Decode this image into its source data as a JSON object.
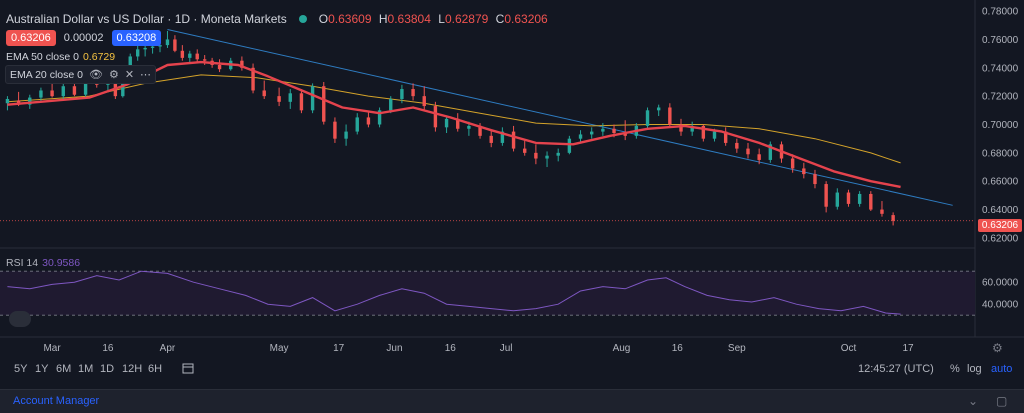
{
  "header": {
    "symbol": "Australian Dollar vs US Dollar · 1D · Moneta Markets",
    "open_k": "O",
    "open": "0.63609",
    "high_k": "H",
    "high": "0.63804",
    "low_k": "L",
    "low": "0.62879",
    "close_k": "C",
    "close": "0.63206"
  },
  "trade": {
    "sell": "0.63206",
    "spread": "0.00002",
    "buy": "0.63208"
  },
  "indicators": {
    "ema50_label": "EMA 50 close 0",
    "ema50_value": "0.6729",
    "ema20_label": "EMA 20 close 0",
    "rsi_label": "RSI 14",
    "rsi_value": "30.9586"
  },
  "current_price_label": "0.63206",
  "toolbar": {
    "timeframes": [
      "5Y",
      "1Y",
      "6M",
      "1M",
      "1D",
      "12H",
      "6H"
    ],
    "clock": "12:45:27 (UTC)",
    "percent": "%",
    "log": "log",
    "auto": "auto"
  },
  "footer": {
    "account_manager": "Account Manager"
  },
  "colors": {
    "up": "#26a69a",
    "down": "#ef5350",
    "ema20": "#e5434d",
    "ema50": "#d4a32a",
    "trend": "#2e7cc1",
    "rsi": "#7e57c2",
    "rsi_bg": "#1f1a30"
  },
  "chart_data": {
    "type": "candlestick",
    "price_axis": {
      "labels": [
        "0.78000",
        "0.76000",
        "0.74000",
        "0.72000",
        "0.70000",
        "0.68000",
        "0.66000",
        "0.64000",
        "0.62000"
      ],
      "range": [
        0.615,
        0.785
      ]
    },
    "rsi_axis": {
      "labels": [
        "60.0000",
        "40.0000"
      ],
      "range": [
        22,
        82
      ],
      "bands": [
        70,
        30
      ]
    },
    "x_labels": [
      "Mar",
      "16",
      "Apr",
      "May",
      "17",
      "Jun",
      "16",
      "Jul",
      "Aug",
      "16",
      "Sep",
      "Oct",
      "17"
    ],
    "x_label_days": [
      0,
      15,
      31,
      61,
      77,
      92,
      107,
      122,
      153,
      168,
      184,
      214,
      230
    ],
    "day_range": [
      -14,
      248
    ],
    "candles": [
      {
        "d": -12,
        "o": 0.715,
        "h": 0.72,
        "l": 0.71,
        "c": 0.718
      },
      {
        "d": -9,
        "o": 0.717,
        "h": 0.723,
        "l": 0.713,
        "c": 0.714
      },
      {
        "d": -6,
        "o": 0.714,
        "h": 0.721,
        "l": 0.711,
        "c": 0.719
      },
      {
        "d": -3,
        "o": 0.719,
        "h": 0.726,
        "l": 0.716,
        "c": 0.724
      },
      {
        "d": 0,
        "o": 0.724,
        "h": 0.729,
        "l": 0.719,
        "c": 0.72
      },
      {
        "d": 3,
        "o": 0.72,
        "h": 0.729,
        "l": 0.718,
        "c": 0.727
      },
      {
        "d": 6,
        "o": 0.727,
        "h": 0.73,
        "l": 0.72,
        "c": 0.721
      },
      {
        "d": 9,
        "o": 0.721,
        "h": 0.733,
        "l": 0.719,
        "c": 0.731
      },
      {
        "d": 12,
        "o": 0.731,
        "h": 0.735,
        "l": 0.726,
        "c": 0.728
      },
      {
        "d": 15,
        "o": 0.728,
        "h": 0.733,
        "l": 0.724,
        "c": 0.731
      },
      {
        "d": 17,
        "o": 0.731,
        "h": 0.732,
        "l": 0.718,
        "c": 0.72
      },
      {
        "d": 19,
        "o": 0.72,
        "h": 0.74,
        "l": 0.719,
        "c": 0.738
      },
      {
        "d": 21,
        "o": 0.738,
        "h": 0.75,
        "l": 0.736,
        "c": 0.748
      },
      {
        "d": 23,
        "o": 0.748,
        "h": 0.756,
        "l": 0.745,
        "c": 0.753
      },
      {
        "d": 25,
        "o": 0.753,
        "h": 0.757,
        "l": 0.748,
        "c": 0.754
      },
      {
        "d": 27,
        "o": 0.754,
        "h": 0.758,
        "l": 0.75,
        "c": 0.755
      },
      {
        "d": 29,
        "o": 0.755,
        "h": 0.761,
        "l": 0.751,
        "c": 0.756
      },
      {
        "d": 31,
        "o": 0.756,
        "h": 0.766,
        "l": 0.754,
        "c": 0.76
      },
      {
        "d": 33,
        "o": 0.76,
        "h": 0.763,
        "l": 0.751,
        "c": 0.752
      },
      {
        "d": 35,
        "o": 0.752,
        "h": 0.756,
        "l": 0.745,
        "c": 0.747
      },
      {
        "d": 37,
        "o": 0.747,
        "h": 0.752,
        "l": 0.744,
        "c": 0.75
      },
      {
        "d": 39,
        "o": 0.75,
        "h": 0.753,
        "l": 0.744,
        "c": 0.746
      },
      {
        "d": 41,
        "o": 0.746,
        "h": 0.749,
        "l": 0.742,
        "c": 0.745
      },
      {
        "d": 43,
        "o": 0.745,
        "h": 0.747,
        "l": 0.74,
        "c": 0.742
      },
      {
        "d": 45,
        "o": 0.742,
        "h": 0.746,
        "l": 0.737,
        "c": 0.739
      },
      {
        "d": 48,
        "o": 0.739,
        "h": 0.747,
        "l": 0.738,
        "c": 0.745
      },
      {
        "d": 51,
        "o": 0.745,
        "h": 0.748,
        "l": 0.738,
        "c": 0.74
      },
      {
        "d": 54,
        "o": 0.74,
        "h": 0.743,
        "l": 0.722,
        "c": 0.724
      },
      {
        "d": 57,
        "o": 0.724,
        "h": 0.731,
        "l": 0.718,
        "c": 0.72
      },
      {
        "d": 61,
        "o": 0.72,
        "h": 0.726,
        "l": 0.713,
        "c": 0.716
      },
      {
        "d": 64,
        "o": 0.716,
        "h": 0.725,
        "l": 0.711,
        "c": 0.722
      },
      {
        "d": 67,
        "o": 0.722,
        "h": 0.725,
        "l": 0.708,
        "c": 0.71
      },
      {
        "d": 70,
        "o": 0.71,
        "h": 0.729,
        "l": 0.708,
        "c": 0.727
      },
      {
        "d": 73,
        "o": 0.727,
        "h": 0.73,
        "l": 0.7,
        "c": 0.702
      },
      {
        "d": 76,
        "o": 0.702,
        "h": 0.705,
        "l": 0.687,
        "c": 0.69
      },
      {
        "d": 79,
        "o": 0.69,
        "h": 0.7,
        "l": 0.685,
        "c": 0.695
      },
      {
        "d": 82,
        "o": 0.695,
        "h": 0.708,
        "l": 0.693,
        "c": 0.705
      },
      {
        "d": 85,
        "o": 0.705,
        "h": 0.709,
        "l": 0.698,
        "c": 0.7
      },
      {
        "d": 88,
        "o": 0.7,
        "h": 0.712,
        "l": 0.698,
        "c": 0.71
      },
      {
        "d": 91,
        "o": 0.71,
        "h": 0.72,
        "l": 0.708,
        "c": 0.718
      },
      {
        "d": 94,
        "o": 0.718,
        "h": 0.728,
        "l": 0.715,
        "c": 0.725
      },
      {
        "d": 97,
        "o": 0.725,
        "h": 0.729,
        "l": 0.717,
        "c": 0.72
      },
      {
        "d": 100,
        "o": 0.72,
        "h": 0.727,
        "l": 0.71,
        "c": 0.713
      },
      {
        "d": 103,
        "o": 0.713,
        "h": 0.716,
        "l": 0.695,
        "c": 0.698
      },
      {
        "d": 106,
        "o": 0.698,
        "h": 0.706,
        "l": 0.694,
        "c": 0.704
      },
      {
        "d": 109,
        "o": 0.704,
        "h": 0.708,
        "l": 0.695,
        "c": 0.697
      },
      {
        "d": 112,
        "o": 0.697,
        "h": 0.702,
        "l": 0.692,
        "c": 0.699
      },
      {
        "d": 115,
        "o": 0.699,
        "h": 0.701,
        "l": 0.69,
        "c": 0.692
      },
      {
        "d": 118,
        "o": 0.692,
        "h": 0.696,
        "l": 0.684,
        "c": 0.687
      },
      {
        "d": 121,
        "o": 0.687,
        "h": 0.698,
        "l": 0.685,
        "c": 0.695
      },
      {
        "d": 124,
        "o": 0.695,
        "h": 0.699,
        "l": 0.681,
        "c": 0.683
      },
      {
        "d": 127,
        "o": 0.683,
        "h": 0.689,
        "l": 0.678,
        "c": 0.68
      },
      {
        "d": 130,
        "o": 0.68,
        "h": 0.686,
        "l": 0.672,
        "c": 0.676
      },
      {
        "d": 133,
        "o": 0.676,
        "h": 0.681,
        "l": 0.67,
        "c": 0.678
      },
      {
        "d": 136,
        "o": 0.678,
        "h": 0.683,
        "l": 0.674,
        "c": 0.68
      },
      {
        "d": 139,
        "o": 0.68,
        "h": 0.692,
        "l": 0.679,
        "c": 0.69
      },
      {
        "d": 142,
        "o": 0.69,
        "h": 0.696,
        "l": 0.688,
        "c": 0.693
      },
      {
        "d": 145,
        "o": 0.693,
        "h": 0.698,
        "l": 0.69,
        "c": 0.695
      },
      {
        "d": 148,
        "o": 0.695,
        "h": 0.701,
        "l": 0.692,
        "c": 0.697
      },
      {
        "d": 151,
        "o": 0.697,
        "h": 0.7,
        "l": 0.691,
        "c": 0.694
      },
      {
        "d": 154,
        "o": 0.694,
        "h": 0.703,
        "l": 0.689,
        "c": 0.692
      },
      {
        "d": 157,
        "o": 0.692,
        "h": 0.701,
        "l": 0.69,
        "c": 0.699
      },
      {
        "d": 160,
        "o": 0.699,
        "h": 0.712,
        "l": 0.697,
        "c": 0.71
      },
      {
        "d": 163,
        "o": 0.71,
        "h": 0.714,
        "l": 0.706,
        "c": 0.712
      },
      {
        "d": 166,
        "o": 0.712,
        "h": 0.715,
        "l": 0.698,
        "c": 0.7
      },
      {
        "d": 169,
        "o": 0.7,
        "h": 0.704,
        "l": 0.692,
        "c": 0.695
      },
      {
        "d": 172,
        "o": 0.695,
        "h": 0.702,
        "l": 0.692,
        "c": 0.699
      },
      {
        "d": 175,
        "o": 0.699,
        "h": 0.7,
        "l": 0.688,
        "c": 0.69
      },
      {
        "d": 178,
        "o": 0.69,
        "h": 0.697,
        "l": 0.688,
        "c": 0.695
      },
      {
        "d": 181,
        "o": 0.695,
        "h": 0.698,
        "l": 0.685,
        "c": 0.687
      },
      {
        "d": 184,
        "o": 0.687,
        "h": 0.69,
        "l": 0.68,
        "c": 0.683
      },
      {
        "d": 187,
        "o": 0.683,
        "h": 0.687,
        "l": 0.676,
        "c": 0.679
      },
      {
        "d": 190,
        "o": 0.679,
        "h": 0.683,
        "l": 0.672,
        "c": 0.675
      },
      {
        "d": 193,
        "o": 0.675,
        "h": 0.688,
        "l": 0.673,
        "c": 0.686
      },
      {
        "d": 196,
        "o": 0.686,
        "h": 0.688,
        "l": 0.673,
        "c": 0.676
      },
      {
        "d": 199,
        "o": 0.676,
        "h": 0.679,
        "l": 0.666,
        "c": 0.669
      },
      {
        "d": 202,
        "o": 0.669,
        "h": 0.673,
        "l": 0.662,
        "c": 0.665
      },
      {
        "d": 205,
        "o": 0.665,
        "h": 0.668,
        "l": 0.655,
        "c": 0.658
      },
      {
        "d": 208,
        "o": 0.658,
        "h": 0.66,
        "l": 0.638,
        "c": 0.642
      },
      {
        "d": 211,
        "o": 0.642,
        "h": 0.655,
        "l": 0.64,
        "c": 0.652
      },
      {
        "d": 214,
        "o": 0.652,
        "h": 0.654,
        "l": 0.642,
        "c": 0.644
      },
      {
        "d": 217,
        "o": 0.644,
        "h": 0.653,
        "l": 0.642,
        "c": 0.651
      },
      {
        "d": 220,
        "o": 0.651,
        "h": 0.653,
        "l": 0.639,
        "c": 0.64
      },
      {
        "d": 223,
        "o": 0.64,
        "h": 0.646,
        "l": 0.635,
        "c": 0.637
      },
      {
        "d": 226,
        "o": 0.6361,
        "h": 0.638,
        "l": 0.6288,
        "c": 0.6321
      }
    ],
    "ema20": [
      [
        -12,
        0.714
      ],
      [
        10,
        0.719
      ],
      [
        20,
        0.728
      ],
      [
        31,
        0.742
      ],
      [
        40,
        0.744
      ],
      [
        50,
        0.742
      ],
      [
        58,
        0.734
      ],
      [
        68,
        0.723
      ],
      [
        78,
        0.712
      ],
      [
        88,
        0.708
      ],
      [
        97,
        0.712
      ],
      [
        107,
        0.705
      ],
      [
        118,
        0.696
      ],
      [
        130,
        0.687
      ],
      [
        140,
        0.686
      ],
      [
        150,
        0.692
      ],
      [
        160,
        0.697
      ],
      [
        170,
        0.699
      ],
      [
        180,
        0.695
      ],
      [
        190,
        0.687
      ],
      [
        200,
        0.677
      ],
      [
        210,
        0.667
      ],
      [
        220,
        0.66
      ],
      [
        228,
        0.656
      ]
    ],
    "ema50": [
      [
        -12,
        0.716
      ],
      [
        10,
        0.72
      ],
      [
        25,
        0.729
      ],
      [
        40,
        0.735
      ],
      [
        55,
        0.733
      ],
      [
        70,
        0.727
      ],
      [
        85,
        0.72
      ],
      [
        100,
        0.715
      ],
      [
        115,
        0.708
      ],
      [
        130,
        0.701
      ],
      [
        145,
        0.699
      ],
      [
        160,
        0.7
      ],
      [
        175,
        0.7
      ],
      [
        190,
        0.697
      ],
      [
        205,
        0.69
      ],
      [
        220,
        0.68
      ],
      [
        228,
        0.6729
      ]
    ],
    "trendline": [
      [
        31,
        0.767
      ],
      [
        242,
        0.643
      ]
    ],
    "rsi": [
      [
        -12,
        56
      ],
      [
        -6,
        54
      ],
      [
        0,
        58
      ],
      [
        6,
        60
      ],
      [
        12,
        66
      ],
      [
        18,
        62
      ],
      [
        24,
        70
      ],
      [
        31,
        68
      ],
      [
        38,
        60
      ],
      [
        45,
        54
      ],
      [
        52,
        48
      ],
      [
        58,
        40
      ],
      [
        64,
        38
      ],
      [
        70,
        46
      ],
      [
        76,
        34
      ],
      [
        82,
        40
      ],
      [
        88,
        48
      ],
      [
        94,
        54
      ],
      [
        100,
        50
      ],
      [
        106,
        40
      ],
      [
        112,
        38
      ],
      [
        118,
        36
      ],
      [
        124,
        34
      ],
      [
        130,
        36
      ],
      [
        136,
        40
      ],
      [
        142,
        52
      ],
      [
        148,
        56
      ],
      [
        154,
        54
      ],
      [
        160,
        62
      ],
      [
        165,
        64
      ],
      [
        170,
        56
      ],
      [
        176,
        48
      ],
      [
        182,
        44
      ],
      [
        188,
        42
      ],
      [
        194,
        46
      ],
      [
        200,
        40
      ],
      [
        206,
        36
      ],
      [
        212,
        34
      ],
      [
        218,
        38
      ],
      [
        224,
        32
      ],
      [
        228,
        31
      ]
    ]
  }
}
